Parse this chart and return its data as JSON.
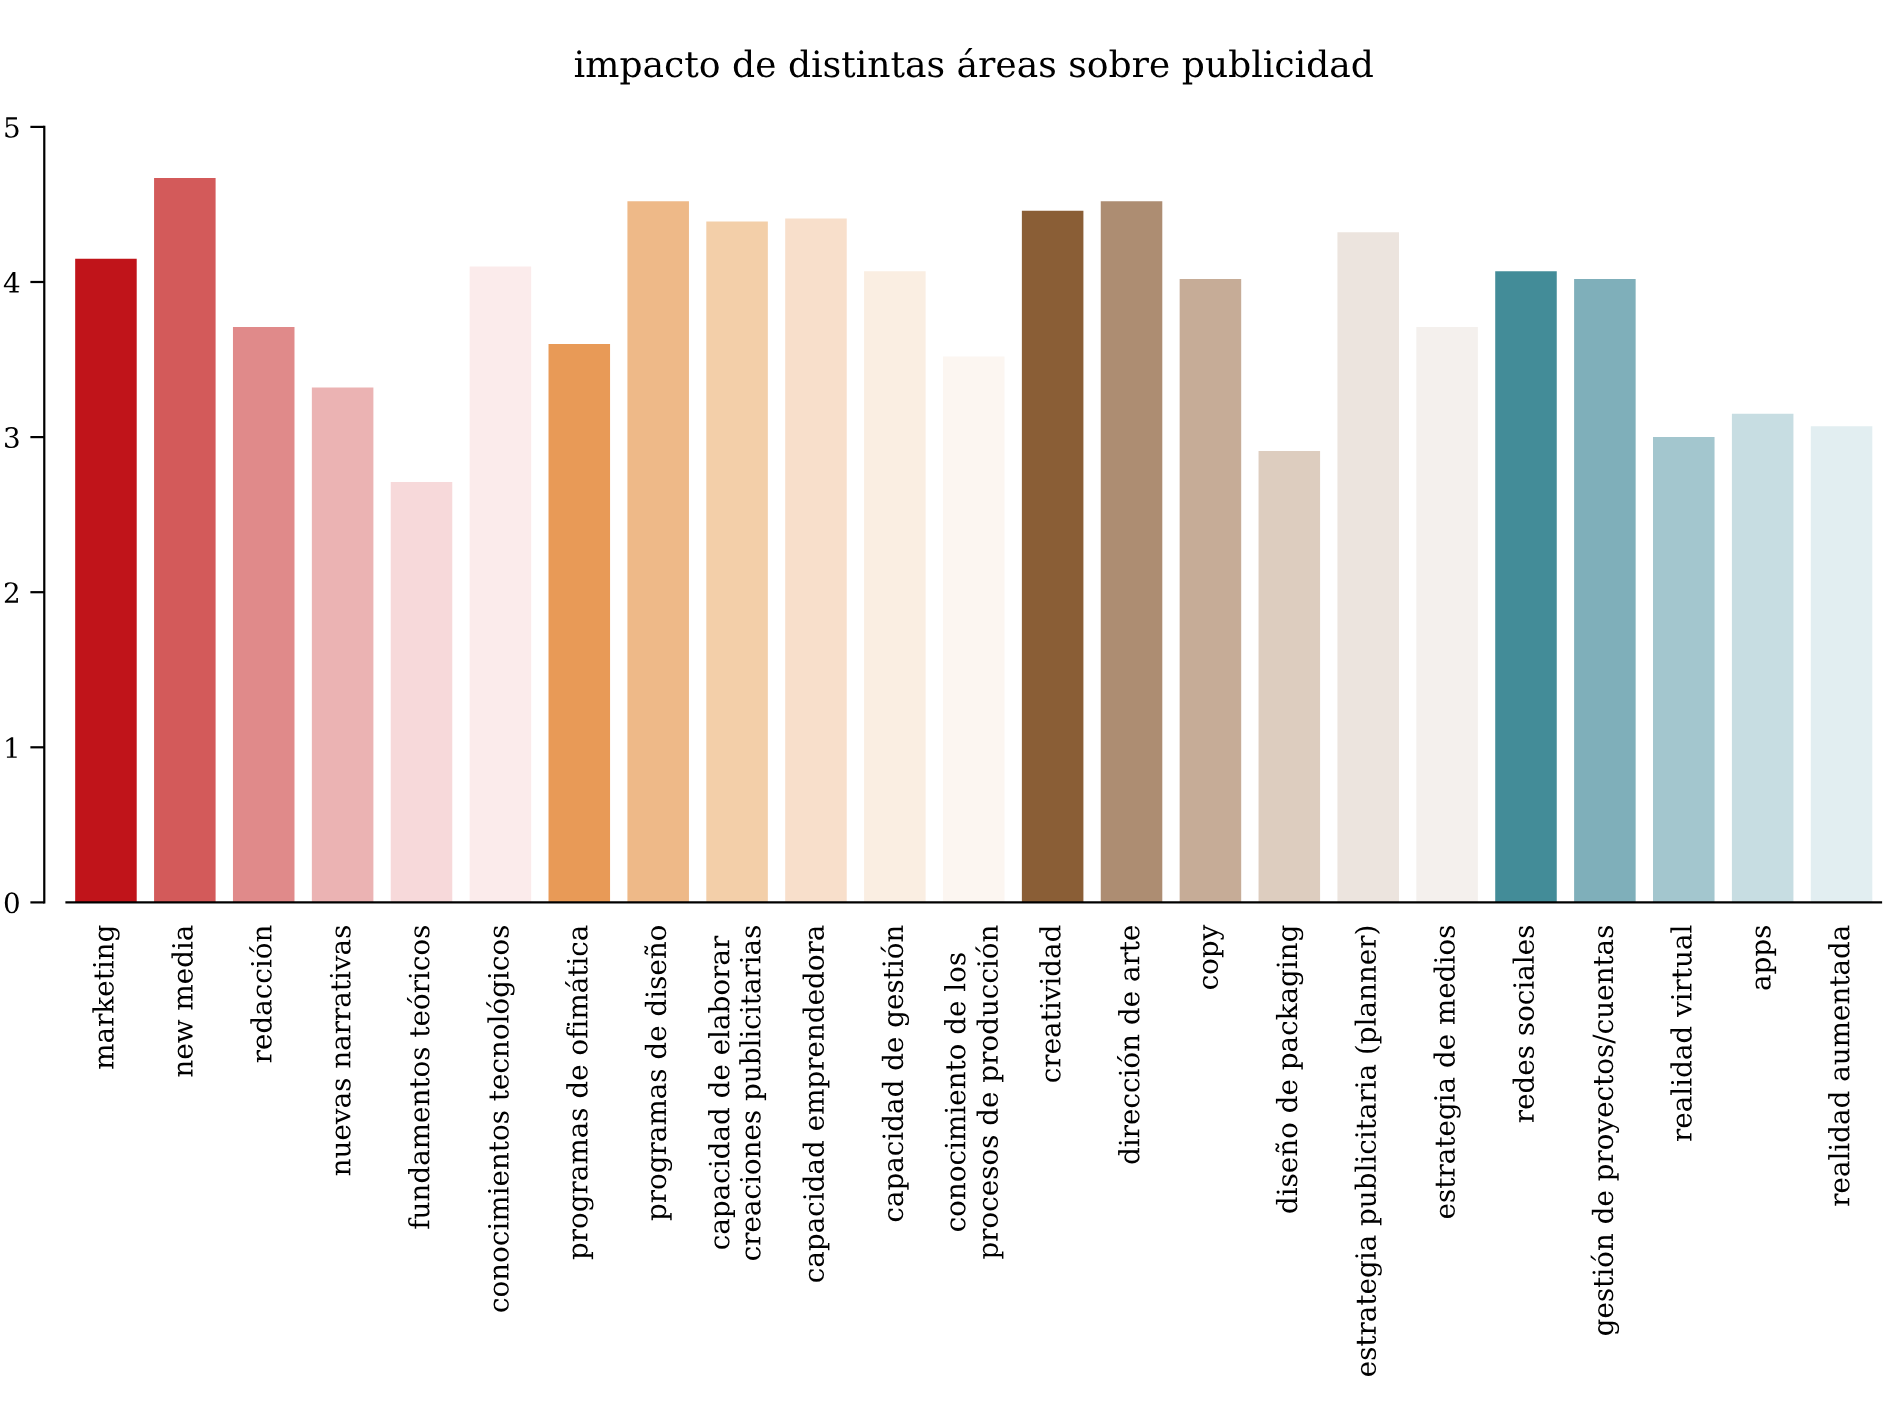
{
  "chart_data": {
    "type": "bar",
    "title": "impacto de distintas áreas sobre publicidad",
    "categories": [
      "marketing",
      "new media",
      "redacción",
      "nuevas narrativas",
      "fundamentos teóricos",
      "conocimientos tecnológicos",
      "programas de ofimática",
      "programas de diseño",
      "capacidad de elaborar\ncreaciones publicitarias",
      "capacidad emprendedora",
      "capacidad de gestión",
      "conocimiento de los\nprocesos de producción",
      "creatividad",
      "dirección de arte",
      "copy",
      "diseño de packaging",
      "estrategia publicitaria (planner)",
      "estrategia de medios",
      "redes sociales",
      "gestión de proyectos/cuentas",
      "realidad virtual",
      "apps",
      "realidad aumentada"
    ],
    "values": [
      4.15,
      4.67,
      3.71,
      3.32,
      2.71,
      4.1,
      3.6,
      4.52,
      4.39,
      4.41,
      4.07,
      3.52,
      4.46,
      4.52,
      4.02,
      2.91,
      4.32,
      3.71,
      4.07,
      4.02,
      3.0,
      3.15,
      3.07
    ],
    "colors": [
      "#c0141a",
      "#d35a5a",
      "#e08a8a",
      "#ebb3b3",
      "#f7d9da",
      "#fbebeb",
      "#e89a57",
      "#eeb988",
      "#f3cfa9",
      "#f8dfcb",
      "#faeee2",
      "#fcf6f1",
      "#8a5e36",
      "#ad8d72",
      "#c6ac97",
      "#ddcdbf",
      "#ece4de",
      "#f4f0ed",
      "#438c98",
      "#7fafba",
      "#a3c6ce",
      "#c7dde2",
      "#e2eef1"
    ],
    "ylim": [
      0,
      5
    ],
    "yticks": [
      0,
      1,
      2,
      3,
      4,
      5
    ],
    "grid": false,
    "legend": false
  }
}
